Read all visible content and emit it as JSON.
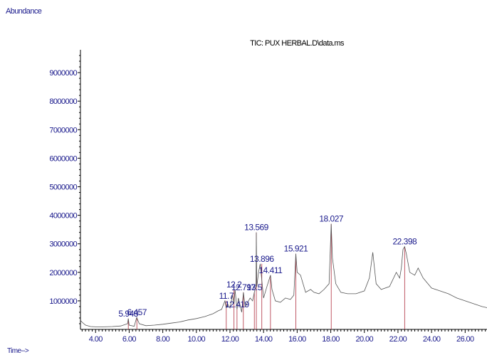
{
  "chart_data": {
    "type": "line",
    "title": "TIC: PUX HERBAL.D\\data.ms",
    "ylabel": "Abundance",
    "xlabel": "Time-->",
    "xlim": [
      3.1,
      27.3
    ],
    "ylim": [
      0,
      9800000
    ],
    "xticks": [
      "4.00",
      "6.00",
      "8.00",
      "10.00",
      "12.00",
      "14.00",
      "16.00",
      "18.00",
      "20.00",
      "22.00",
      "24.00",
      "26.00"
    ],
    "yticks": [
      "1000000",
      "2000000",
      "3000000",
      "4000000",
      "5000000",
      "6000000",
      "7000000",
      "8000000",
      "9000000"
    ],
    "line_color": "#555555",
    "label_color": "#1a1a8c",
    "grid": false,
    "series": [
      {
        "x": [
          3.1,
          3.2,
          3.4,
          3.7,
          4.0,
          4.5,
          5.0,
          5.5,
          5.9,
          5.95,
          6.0,
          6.3,
          6.45,
          6.6,
          7.0,
          7.5,
          8.0,
          8.5,
          9.0,
          9.5,
          10.0,
          10.5,
          11.0,
          11.3,
          11.5,
          11.7,
          11.78,
          11.85,
          12.0,
          12.15,
          12.24,
          12.3,
          12.42,
          12.5,
          12.7,
          12.8,
          12.9,
          13.1,
          13.2,
          13.35,
          13.45,
          13.55,
          13.569,
          13.6,
          13.7,
          13.8,
          13.9,
          14.0,
          14.2,
          14.41,
          14.5,
          14.7,
          15.0,
          15.3,
          15.6,
          15.8,
          15.921,
          16.0,
          16.2,
          16.5,
          16.8,
          17.0,
          17.3,
          17.6,
          17.9,
          18.027,
          18.1,
          18.3,
          18.6,
          19.0,
          19.5,
          20.0,
          20.3,
          20.5,
          20.7,
          21.0,
          21.5,
          21.9,
          22.1,
          22.2,
          22.3,
          22.398,
          22.5,
          22.7,
          23.0,
          23.2,
          23.5,
          24.0,
          24.5,
          25.0,
          25.5,
          26.0,
          26.5,
          27.0,
          27.3
        ],
        "y": [
          320000,
          250000,
          150000,
          100000,
          90000,
          90000,
          100000,
          120000,
          200000,
          380000,
          150000,
          110000,
          420000,
          200000,
          130000,
          150000,
          180000,
          220000,
          260000,
          330000,
          380000,
          450000,
          550000,
          650000,
          700000,
          1000000,
          750000,
          900000,
          750000,
          1200000,
          900000,
          1400000,
          700000,
          1100000,
          600000,
          1300000,
          800000,
          1000000,
          1100000,
          1000000,
          1300000,
          1500000,
          3400000,
          1500000,
          2000000,
          2300000,
          1700000,
          1100000,
          1500000,
          1900000,
          1400000,
          1000000,
          950000,
          1100000,
          1050000,
          1200000,
          2650000,
          2000000,
          1900000,
          1300000,
          1400000,
          1300000,
          1250000,
          1400000,
          1600000,
          3700000,
          2500000,
          1600000,
          1300000,
          1250000,
          1250000,
          1350000,
          1800000,
          2700000,
          1600000,
          1400000,
          1500000,
          2000000,
          1800000,
          2150000,
          2800000,
          2900000,
          2650000,
          2000000,
          1900000,
          2150000,
          1800000,
          1450000,
          1350000,
          1250000,
          1100000,
          1000000,
          900000,
          800000,
          760000
        ]
      }
    ],
    "peak_labels": [
      {
        "text": "5.948",
        "x": 5.948,
        "y": 380000,
        "clipped": true
      },
      {
        "text": "6.457",
        "x": 6.457,
        "y": 420000,
        "clipped": false
      },
      {
        "text": "11.7",
        "x": 11.78,
        "y": 1000000,
        "clipped": true
      },
      {
        "text": "12.2",
        "x": 12.24,
        "y": 1400000,
        "clipped": true
      },
      {
        "text": "12.419",
        "x": 12.419,
        "y": 700000,
        "clipped": false
      },
      {
        "text": "12.797",
        "x": 12.797,
        "y": 1300000,
        "clipped": false
      },
      {
        "text": "13.5",
        "x": 13.45,
        "y": 1300000,
        "clipped": true
      },
      {
        "text": "13.569",
        "x": 13.569,
        "y": 3400000,
        "clipped": false
      },
      {
        "text": "13.896",
        "x": 13.896,
        "y": 2300000,
        "clipped": false
      },
      {
        "text": "14.411",
        "x": 14.411,
        "y": 1900000,
        "clipped": false
      },
      {
        "text": "15.921",
        "x": 15.921,
        "y": 2650000,
        "clipped": false
      },
      {
        "text": "18.027",
        "x": 18.027,
        "y": 3700000,
        "clipped": false
      },
      {
        "text": "22.398",
        "x": 22.398,
        "y": 2900000,
        "clipped": false
      }
    ]
  }
}
